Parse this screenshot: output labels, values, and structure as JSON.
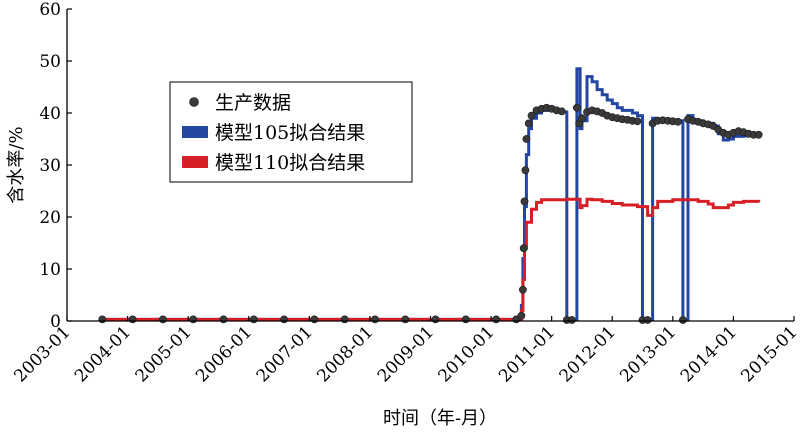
{
  "chart_data": {
    "type": "line",
    "xlabel": "时间（年-月）",
    "ylabel": "含水率/%",
    "ylim": [
      0,
      60
    ],
    "yticks": [
      0,
      10,
      20,
      30,
      40,
      50,
      60
    ],
    "xlim": [
      "2003-01",
      "2015-01"
    ],
    "xticks": [
      "2003-01",
      "2004-01",
      "2005-01",
      "2006-01",
      "2007-01",
      "2008-01",
      "2009-01",
      "2010-01",
      "2011-01",
      "2012-01",
      "2013-01",
      "2014-01",
      "2015-01"
    ],
    "grid": false,
    "legend_position": "upper-left-inside",
    "series": [
      {
        "name": "生产数据",
        "style": "markers",
        "color": "#3a3a3a",
        "points": [
          [
            "2003-08",
            0.3
          ],
          [
            "2004-02",
            0.3
          ],
          [
            "2004-08",
            0.3
          ],
          [
            "2005-02",
            0.3
          ],
          [
            "2005-08",
            0.3
          ],
          [
            "2006-02",
            0.3
          ],
          [
            "2006-08",
            0.3
          ],
          [
            "2007-02",
            0.3
          ],
          [
            "2007-08",
            0.3
          ],
          [
            "2008-02",
            0.3
          ],
          [
            "2008-08",
            0.3
          ],
          [
            "2009-02",
            0.3
          ],
          [
            "2009-08",
            0.3
          ],
          [
            "2010-02",
            0.3
          ],
          [
            "2010-06",
            0.3
          ],
          [
            "2010-07",
            1
          ],
          [
            "2010-07-10",
            6
          ],
          [
            "2010-07-15",
            14
          ],
          [
            "2010-07-20",
            23
          ],
          [
            "2010-07-25",
            29
          ],
          [
            "2010-08",
            35
          ],
          [
            "2010-08-15",
            38
          ],
          [
            "2010-09",
            39.5
          ],
          [
            "2010-10",
            40.5
          ],
          [
            "2010-11",
            40.8
          ],
          [
            "2010-12",
            41
          ],
          [
            "2011-01",
            40.8
          ],
          [
            "2011-02",
            40.5
          ],
          [
            "2011-03",
            40.3
          ],
          [
            "2011-04",
            0.2
          ],
          [
            "2011-05",
            0.2
          ],
          [
            "2011-06",
            41
          ],
          [
            "2011-06-15",
            38
          ],
          [
            "2011-07",
            39
          ],
          [
            "2011-08",
            40.2
          ],
          [
            "2011-09",
            40.5
          ],
          [
            "2011-10",
            40.3
          ],
          [
            "2011-11",
            40
          ],
          [
            "2011-12",
            39.5
          ],
          [
            "2012-01",
            39.2
          ],
          [
            "2012-02",
            39
          ],
          [
            "2012-03",
            38.8
          ],
          [
            "2012-04",
            38.7
          ],
          [
            "2012-05",
            38.5
          ],
          [
            "2012-06",
            38.4
          ],
          [
            "2012-07",
            0.2
          ],
          [
            "2012-08",
            0.2
          ],
          [
            "2012-09",
            38
          ],
          [
            "2012-10",
            38.5
          ],
          [
            "2012-11",
            38.6
          ],
          [
            "2012-12",
            38.5
          ],
          [
            "2013-01",
            38.4
          ],
          [
            "2013-02",
            38.3
          ],
          [
            "2013-03",
            0.2
          ],
          [
            "2013-04",
            38.8
          ],
          [
            "2013-05",
            38.5
          ],
          [
            "2013-06",
            38.3
          ],
          [
            "2013-07",
            38
          ],
          [
            "2013-08",
            37.8
          ],
          [
            "2013-09",
            37.5
          ],
          [
            "2013-10",
            36.8
          ],
          [
            "2013-11",
            36.2
          ],
          [
            "2013-12",
            35.8
          ],
          [
            "2014-01",
            36.2
          ],
          [
            "2014-02",
            36.5
          ],
          [
            "2014-03",
            36.3
          ],
          [
            "2014-04",
            36
          ],
          [
            "2014-05",
            35.8
          ],
          [
            "2014-06",
            35.8
          ]
        ]
      },
      {
        "name": "模型105拟合结果",
        "style": "step-line",
        "color": "#2346a3",
        "points": [
          [
            "2003-08",
            0.3
          ],
          [
            "2010-06",
            0.3
          ],
          [
            "2010-07",
            3
          ],
          [
            "2010-07-10",
            12
          ],
          [
            "2010-07-20",
            22
          ],
          [
            "2010-08",
            32
          ],
          [
            "2010-08-15",
            37
          ],
          [
            "2010-09",
            39
          ],
          [
            "2010-10",
            40
          ],
          [
            "2010-11",
            40.5
          ],
          [
            "2011-01",
            40.5
          ],
          [
            "2011-03",
            40.2
          ],
          [
            "2011-04",
            0.2
          ],
          [
            "2011-06",
            0.2
          ],
          [
            "2011-06",
            48.5
          ],
          [
            "2011-06-20",
            48.5
          ],
          [
            "2011-06-20",
            37
          ],
          [
            "2011-07",
            38.5
          ],
          [
            "2011-08",
            47
          ],
          [
            "2011-09",
            46
          ],
          [
            "2011-10",
            44.5
          ],
          [
            "2011-11",
            43.5
          ],
          [
            "2011-12",
            42.5
          ],
          [
            "2012-01",
            41.8
          ],
          [
            "2012-02",
            41
          ],
          [
            "2012-03",
            40.5
          ],
          [
            "2012-05",
            40
          ],
          [
            "2012-06",
            39.5
          ],
          [
            "2012-07",
            0.2
          ],
          [
            "2012-08",
            0.2
          ],
          [
            "2012-09",
            39
          ],
          [
            "2012-10",
            38.5
          ],
          [
            "2013-01",
            38.5
          ],
          [
            "2013-02",
            38.5
          ],
          [
            "2013-03",
            0.2
          ],
          [
            "2013-04",
            39.5
          ],
          [
            "2013-05",
            38.5
          ],
          [
            "2013-07",
            38
          ],
          [
            "2013-09",
            37.5
          ],
          [
            "2013-10",
            36
          ],
          [
            "2013-11",
            34.8
          ],
          [
            "2013-12",
            35
          ],
          [
            "2014-01",
            35.5
          ],
          [
            "2014-03",
            35.6
          ],
          [
            "2014-06",
            35.5
          ]
        ]
      },
      {
        "name": "模型110拟合结果",
        "style": "step-line",
        "color": "#d61f26",
        "points": [
          [
            "2003-08",
            0.3
          ],
          [
            "2010-06",
            0.3
          ],
          [
            "2010-07",
            2
          ],
          [
            "2010-07-10",
            8
          ],
          [
            "2010-07-20",
            14
          ],
          [
            "2010-08",
            19
          ],
          [
            "2010-09",
            21.5
          ],
          [
            "2010-10",
            22.8
          ],
          [
            "2010-11",
            23.3
          ],
          [
            "2011-03",
            23.3
          ],
          [
            "2011-04",
            23.4
          ],
          [
            "2011-06",
            23.4
          ],
          [
            "2011-06-20",
            21.8
          ],
          [
            "2011-07",
            22.2
          ],
          [
            "2011-08",
            23.4
          ],
          [
            "2011-09",
            23.3
          ],
          [
            "2011-11",
            23
          ],
          [
            "2012-01",
            22.6
          ],
          [
            "2012-03",
            22.3
          ],
          [
            "2012-06",
            22
          ],
          [
            "2012-07",
            22
          ],
          [
            "2012-08",
            20.3
          ],
          [
            "2012-09",
            21.8
          ],
          [
            "2012-10",
            23
          ],
          [
            "2013-01",
            23.3
          ],
          [
            "2013-03",
            23.3
          ],
          [
            "2013-04",
            23.3
          ],
          [
            "2013-06",
            23
          ],
          [
            "2013-08",
            22.5
          ],
          [
            "2013-09",
            21.8
          ],
          [
            "2013-10",
            21.8
          ],
          [
            "2013-12",
            22.3
          ],
          [
            "2014-01",
            22.8
          ],
          [
            "2014-03",
            23
          ],
          [
            "2014-06",
            22.8
          ]
        ]
      }
    ]
  }
}
